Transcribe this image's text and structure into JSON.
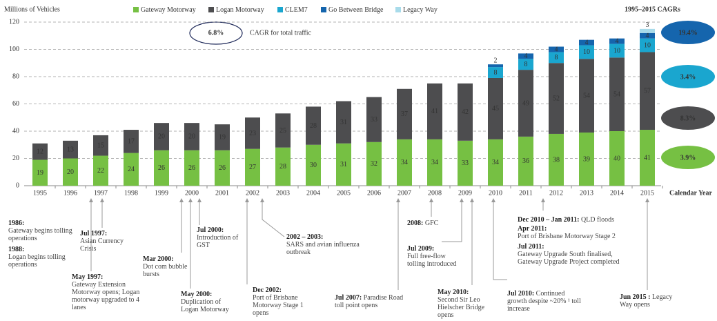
{
  "chart_data": {
    "type": "bar",
    "y_label": "Millions of Vehicles",
    "x_label": "Calendar Year",
    "categories": [
      "1995",
      "1996",
      "1997",
      "1998",
      "1999",
      "2000",
      "2001",
      "2002",
      "2003",
      "2004",
      "2005",
      "2006",
      "2007",
      "2008",
      "2009",
      "2010",
      "2011",
      "2012",
      "2013",
      "2014",
      "2015"
    ],
    "series": [
      {
        "name": "Gateway Motorway",
        "color": "#76c043",
        "values": [
          19,
          20,
          22,
          24,
          26,
          26,
          26,
          27,
          28,
          30,
          31,
          32,
          34,
          34,
          33,
          34,
          36,
          38,
          39,
          40,
          41
        ]
      },
      {
        "name": "Logan Motorway",
        "color": "#4d4d4f",
        "values": [
          12,
          13,
          15,
          17,
          20,
          20,
          19,
          23,
          25,
          28,
          31,
          33,
          37,
          41,
          42,
          45,
          49,
          52,
          54,
          54,
          57
        ]
      },
      {
        "name": "CLEM7",
        "color": "#1aa6cf",
        "values": [
          null,
          null,
          null,
          null,
          null,
          null,
          null,
          null,
          null,
          null,
          null,
          null,
          null,
          null,
          null,
          8,
          8,
          8,
          10,
          10,
          10
        ]
      },
      {
        "name": "Go Between Bridge",
        "color": "#1565ad",
        "values": [
          null,
          null,
          null,
          null,
          null,
          null,
          null,
          null,
          null,
          null,
          null,
          null,
          null,
          null,
          null,
          2,
          4,
          4,
          4,
          4,
          4
        ]
      },
      {
        "name": "Legacy Way",
        "color": "#a8dbea",
        "values": [
          null,
          null,
          null,
          null,
          null,
          null,
          null,
          null,
          null,
          null,
          null,
          null,
          null,
          null,
          null,
          null,
          null,
          null,
          null,
          null,
          3
        ]
      }
    ],
    "ylim": [
      0,
      120
    ],
    "yticks": [
      0,
      20,
      40,
      60,
      80,
      100,
      120
    ],
    "grid": true,
    "total_cagr": "6.8%",
    "total_cagr_text": "CAGR for total traffic",
    "cagr_title": "1995–2015 CAGRs",
    "cagrs": [
      {
        "label": "19.4%",
        "color": "#1565ad"
      },
      {
        "label": "3.4%",
        "color": "#1aa6cf"
      },
      {
        "label": "8.3%",
        "color": "#4d4d4f"
      },
      {
        "label": "3.9%",
        "color": "#76c043"
      }
    ],
    "annotations": [
      {
        "date": "1986:",
        "text": "Gateway begins tolling operations"
      },
      {
        "date": "1988:",
        "text": "Logan begins tolling operations"
      },
      {
        "date": "Jul 1997:",
        "text": "Asian Currency Crisis"
      },
      {
        "date": "May 1997:",
        "text": "Gateway Extension Motorway opens; Logan motorway upgraded to 4 lanes"
      },
      {
        "date": "Mar 2000:",
        "text": "Dot com bubble bursts"
      },
      {
        "date": "Jul 2000:",
        "text": "Introduction of GST"
      },
      {
        "date": "May 2000:",
        "text": "Duplication of Logan Motorway"
      },
      {
        "date": "2002 – 2003:",
        "text": "SARS and avian influenza outbreak"
      },
      {
        "date": "Dec 2002:",
        "text": "Port of Brisbane Motorway Stage 1 opens"
      },
      {
        "date": "2008:",
        "text": "GFC"
      },
      {
        "date": "Jul 2009:",
        "text": "Full free-flow tolling introduced"
      },
      {
        "date": "Jul 2007:",
        "text": "Paradise Road toll point opens"
      },
      {
        "date": "May 2010:",
        "text": "Second Sir Leo Hielscher Bridge opens"
      },
      {
        "date": "Dec 2010 – Jan 2011:",
        "text": "QLD floods"
      },
      {
        "date": "Apr 2011:",
        "text": "Port of Brisbane Motorway Stage 2"
      },
      {
        "date": "Jul 2011:",
        "text": "Gateway Upgrade South finalised, Gateway Upgrade Project completed"
      },
      {
        "date": "Jul 2010:",
        "text": "Continued growth despite ~20% ¹ toll increase"
      },
      {
        "date": "Jun 2015 :",
        "text": "Legacy Way opens"
      }
    ]
  }
}
